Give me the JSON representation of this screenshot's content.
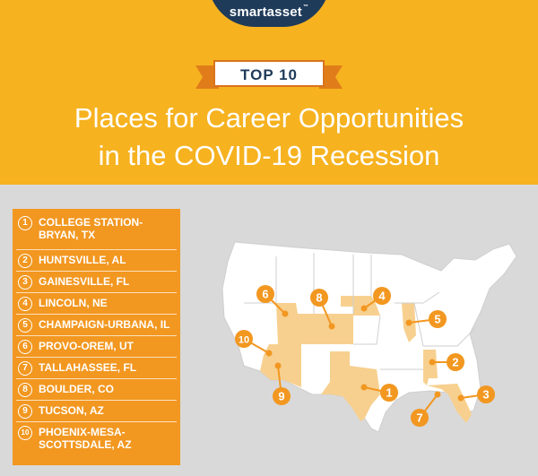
{
  "brand": {
    "name": "smartasset",
    "tm": "™"
  },
  "badge": "TOP 10",
  "title_lines": [
    "Places for Career Opportunities",
    "in the COVID-19 Recession"
  ],
  "ranking": [
    {
      "rank": "1",
      "name": "COLLEGE STATION-\nBRYAN, TX"
    },
    {
      "rank": "2",
      "name": "HUNTSVILLE, AL"
    },
    {
      "rank": "3",
      "name": "GAINESVILLE, FL"
    },
    {
      "rank": "4",
      "name": "LINCOLN, NE"
    },
    {
      "rank": "5",
      "name": "CHAMPAIGN-URBANA, IL"
    },
    {
      "rank": "6",
      "name": "PROVO-OREM, UT"
    },
    {
      "rank": "7",
      "name": "TALLAHASSEE, FL"
    },
    {
      "rank": "8",
      "name": "BOULDER, CO"
    },
    {
      "rank": "9",
      "name": "TUCSON, AZ"
    },
    {
      "rank": "10",
      "name": "PHOENIX-MESA-\nSCOTTSDALE, AZ"
    }
  ],
  "map_markers": [
    "1",
    "2",
    "3",
    "4",
    "5",
    "6",
    "7",
    "8",
    "9",
    "10"
  ],
  "colors": {
    "header": "#f6b21f",
    "navy": "#1f3b5a",
    "orange": "#f29720",
    "highlight": "#f7d08f",
    "land": "#ffffff",
    "background": "#d9d9d9"
  }
}
